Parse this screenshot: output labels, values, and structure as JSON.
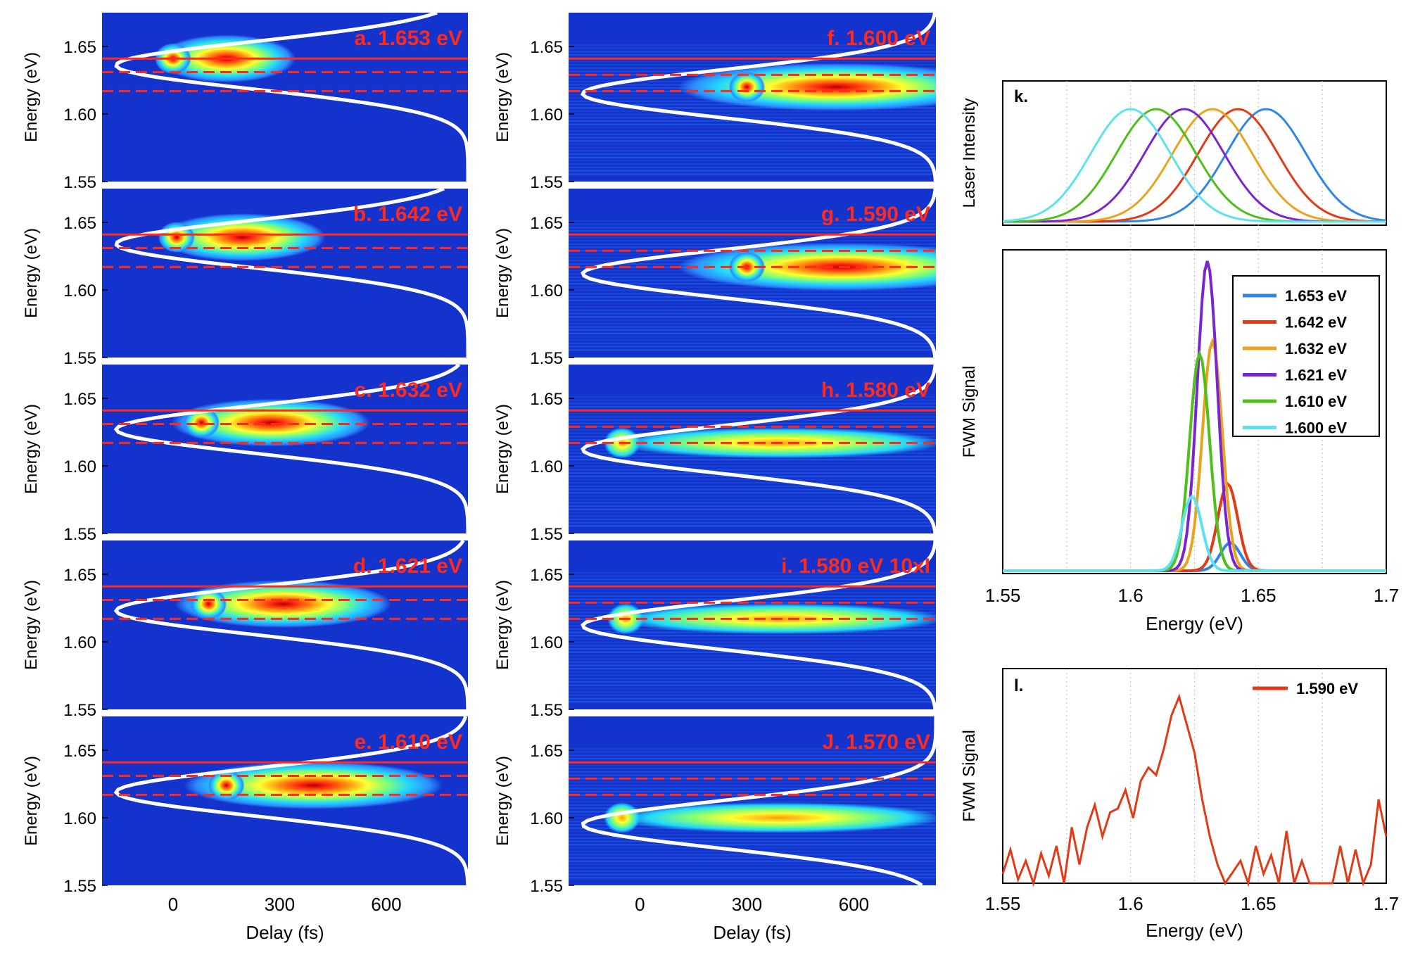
{
  "colors": {
    "map_bg": "#1432cc",
    "marker": "#ff2a1a",
    "spectrum_white": "#ffffff",
    "heat": [
      "#1d3fd6",
      "#2d8cff",
      "#22d8ff",
      "#7cff7a",
      "#ffff30",
      "#ff9a10",
      "#ff2a10",
      "#b00000"
    ]
  },
  "chart_data": [
    {
      "id": "a",
      "type": "heatmap",
      "label": "a. 1.653 eV",
      "xlabel": "",
      "ylabel": "Energy (eV)",
      "xlim": [
        -200,
        830
      ],
      "ylim": [
        1.55,
        1.675
      ],
      "yticks": [
        "1.55",
        "1.60",
        "1.65"
      ],
      "xticks": [],
      "solid_line": 1.641,
      "dashed_lines": [
        1.631,
        1.617
      ],
      "peak_delay": 0,
      "peak_energy": 1.641,
      "signal_extent": 300
    },
    {
      "id": "b",
      "type": "heatmap",
      "label": "b. 1.642 eV",
      "xlabel": "",
      "ylabel": "Energy (eV)",
      "xlim": [
        -200,
        830
      ],
      "ylim": [
        1.55,
        1.675
      ],
      "yticks": [
        "1.55",
        "1.60",
        "1.65"
      ],
      "xticks": [],
      "solid_line": 1.641,
      "dashed_lines": [
        1.631,
        1.617
      ],
      "peak_delay": 10,
      "peak_energy": 1.639,
      "signal_extent": 380
    },
    {
      "id": "c",
      "type": "heatmap",
      "label": "c. 1.632 eV",
      "xlabel": "",
      "ylabel": "Energy (eV)",
      "xlim": [
        -200,
        830
      ],
      "ylim": [
        1.55,
        1.675
      ],
      "yticks": [
        "1.55",
        "1.60",
        "1.65"
      ],
      "xticks": [],
      "solid_line": 1.641,
      "dashed_lines": [
        1.631,
        1.617
      ],
      "peak_delay": 80,
      "peak_energy": 1.632,
      "signal_extent": 470
    },
    {
      "id": "d",
      "type": "heatmap",
      "label": "d. 1.621 eV",
      "xlabel": "",
      "ylabel": "Energy (eV)",
      "xlim": [
        -200,
        830
      ],
      "ylim": [
        1.55,
        1.675
      ],
      "yticks": [
        "1.55",
        "1.60",
        "1.65"
      ],
      "xticks": [],
      "solid_line": 1.641,
      "dashed_lines": [
        1.631,
        1.617
      ],
      "peak_delay": 100,
      "peak_energy": 1.628,
      "signal_extent": 520
    },
    {
      "id": "e",
      "type": "heatmap",
      "label": "e. 1.610 eV",
      "xlabel": "Delay (fs)",
      "ylabel": "Energy (eV)",
      "xlim": [
        -200,
        830
      ],
      "ylim": [
        1.55,
        1.675
      ],
      "yticks": [
        "1.55",
        "1.60",
        "1.65"
      ],
      "xticks": [
        "0",
        "300",
        "600"
      ],
      "solid_line": 1.641,
      "dashed_lines": [
        1.631,
        1.617
      ],
      "peak_delay": 150,
      "peak_energy": 1.624,
      "signal_extent": 640
    },
    {
      "id": "f",
      "type": "heatmap",
      "label": "f. 1.600 eV",
      "xlabel": "",
      "ylabel": "Energy (eV)",
      "xlim": [
        -200,
        830
      ],
      "ylim": [
        1.55,
        1.675
      ],
      "yticks": [
        "1.55",
        "1.60",
        "1.65"
      ],
      "xticks": [],
      "solid_line": 1.641,
      "dashed_lines": [
        1.629,
        1.617
      ],
      "peak_delay": 300,
      "peak_energy": 1.62,
      "signal_extent": 800
    },
    {
      "id": "g",
      "type": "heatmap",
      "label": "g. 1.590 eV",
      "xlabel": "",
      "ylabel": "Energy (eV)",
      "xlim": [
        -200,
        830
      ],
      "ylim": [
        1.55,
        1.675
      ],
      "yticks": [
        "1.55",
        "1.60",
        "1.65"
      ],
      "xticks": [],
      "solid_line": 1.641,
      "dashed_lines": [
        1.629,
        1.617
      ],
      "peak_delay": 300,
      "peak_energy": 1.617,
      "signal_extent": 830
    },
    {
      "id": "h",
      "type": "heatmap",
      "label": "h. 1.580 eV",
      "xlabel": "",
      "ylabel": "Energy (eV)",
      "xlim": [
        -200,
        830
      ],
      "ylim": [
        1.55,
        1.675
      ],
      "yticks": [
        "1.55",
        "1.60",
        "1.65"
      ],
      "xticks": [],
      "solid_line": 1.641,
      "dashed_lines": [
        1.629,
        1.617
      ],
      "peak_delay": -50,
      "peak_energy": 1.617,
      "signal_extent": 830
    },
    {
      "id": "i",
      "type": "heatmap",
      "label": "i. 1.580 eV  10xI",
      "xlabel": "",
      "ylabel": "Energy (eV)",
      "xlim": [
        -200,
        830
      ],
      "ylim": [
        1.55,
        1.675
      ],
      "yticks": [
        "1.55",
        "1.60",
        "1.65"
      ],
      "xticks": [],
      "solid_line": 1.641,
      "dashed_lines": [
        1.629,
        1.617
      ],
      "peak_delay": -40,
      "peak_energy": 1.617,
      "signal_extent": 830
    },
    {
      "id": "j",
      "type": "heatmap",
      "label": "J. 1.570 eV",
      "xlabel": "Delay (fs)",
      "ylabel": "Energy (eV)",
      "xlim": [
        -200,
        830
      ],
      "ylim": [
        1.55,
        1.675
      ],
      "yticks": [
        "1.55",
        "1.60",
        "1.65"
      ],
      "xticks": [
        "0",
        "300",
        "600"
      ],
      "solid_line": 1.641,
      "dashed_lines": [
        1.629,
        1.617
      ],
      "peak_delay": -50,
      "peak_energy": 1.6,
      "signal_extent": 830
    },
    {
      "id": "k",
      "type": "line",
      "label": "k.",
      "xlabel": "Energy (eV)",
      "top_ylabel": "Laser Intensity",
      "bottom_ylabel": "FWM Signal",
      "xlim": [
        1.55,
        1.7
      ],
      "xticks": [
        "1.55",
        "1.6",
        "1.65",
        "1.7"
      ],
      "laser_series": [
        {
          "name": "1.653 eV",
          "center": 1.653,
          "color": "#2f86e6"
        },
        {
          "name": "1.642 eV",
          "center": 1.642,
          "color": "#e03a17"
        },
        {
          "name": "1.632 eV",
          "center": 1.632,
          "color": "#e9a31c"
        },
        {
          "name": "1.621 eV",
          "center": 1.621,
          "color": "#7a25cf"
        },
        {
          "name": "1.610 eV",
          "center": 1.61,
          "color": "#4fbf1a"
        },
        {
          "name": "1.600 eV",
          "center": 1.6,
          "color": "#5be3f0"
        }
      ],
      "fwm_series": [
        {
          "name": "1.653 eV",
          "peak": 1.639,
          "height": 0.09,
          "color": "#2f86e6"
        },
        {
          "name": "1.642 eV",
          "peak": 1.638,
          "height": 0.28,
          "color": "#e03a17"
        },
        {
          "name": "1.632 eV",
          "peak": 1.632,
          "height": 0.74,
          "color": "#e9a31c"
        },
        {
          "name": "1.621 eV",
          "peak": 1.63,
          "height": 1.0,
          "color": "#7a25cf"
        },
        {
          "name": "1.610 eV",
          "peak": 1.627,
          "height": 0.7,
          "color": "#4fbf1a"
        },
        {
          "name": "1.600 eV",
          "peak": 1.624,
          "height": 0.24,
          "color": "#5be3f0"
        }
      ]
    },
    {
      "id": "l",
      "type": "line",
      "label": "l.",
      "xlabel": "Energy (eV)",
      "ylabel": "FWM Signal",
      "xlim": [
        1.55,
        1.7
      ],
      "xticks": [
        "1.55",
        "1.6",
        "1.65",
        "1.7"
      ],
      "series": [
        {
          "name": "1.590 eV",
          "color": "#e03a17",
          "x": [
            1.55,
            1.553,
            1.556,
            1.559,
            1.562,
            1.565,
            1.568,
            1.571,
            1.574,
            1.577,
            1.58,
            1.583,
            1.586,
            1.589,
            1.592,
            1.595,
            1.598,
            1.601,
            1.604,
            1.607,
            1.61,
            1.613,
            1.616,
            1.619,
            1.622,
            1.625,
            1.628,
            1.631,
            1.634,
            1.637,
            1.64,
            1.643,
            1.646,
            1.649,
            1.652,
            1.655,
            1.658,
            1.661,
            1.664,
            1.667,
            1.67,
            1.673,
            1.676,
            1.679,
            1.682,
            1.685,
            1.688,
            1.691,
            1.694,
            1.697,
            1.7
          ],
          "y": [
            0.05,
            0.18,
            0.02,
            0.12,
            0.0,
            0.16,
            0.04,
            0.2,
            0.0,
            0.3,
            0.1,
            0.3,
            0.42,
            0.25,
            0.38,
            0.4,
            0.5,
            0.35,
            0.55,
            0.62,
            0.58,
            0.72,
            0.9,
            1.0,
            0.85,
            0.7,
            0.45,
            0.25,
            0.1,
            0.0,
            0.06,
            0.12,
            0.0,
            0.2,
            0.05,
            0.15,
            0.0,
            0.28,
            0.0,
            0.12,
            0.0,
            0.0,
            0.0,
            0.0,
            0.2,
            0.0,
            0.18,
            0.0,
            0.1,
            0.45,
            0.25
          ]
        }
      ]
    }
  ]
}
